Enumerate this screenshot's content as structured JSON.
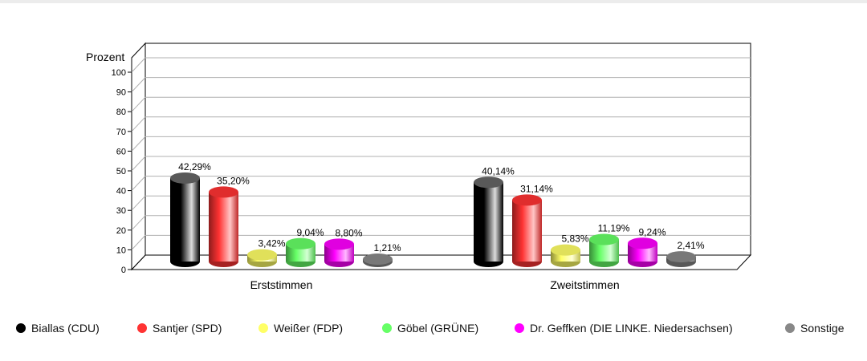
{
  "chart_data": {
    "type": "bar",
    "ylabel": "Prozent",
    "ylim": [
      0,
      100
    ],
    "yticks": [
      0,
      10,
      20,
      30,
      40,
      50,
      60,
      70,
      80,
      90,
      100
    ],
    "grid": true,
    "legend_position": "bottom",
    "categories": [
      "Erststimmen",
      "Zweitstimmen"
    ],
    "series": [
      {
        "name": "Biallas (CDU)",
        "color": "#000000",
        "values": [
          42.29,
          40.14
        ],
        "labels": [
          "42,29%",
          "40,14%"
        ]
      },
      {
        "name": "Santjer (SPD)",
        "color": "#ff3333",
        "values": [
          35.2,
          31.14
        ],
        "labels": [
          "35,20%",
          "31,14%"
        ]
      },
      {
        "name": "Weißer (FDP)",
        "color": "#ffff66",
        "values": [
          3.42,
          5.83
        ],
        "labels": [
          "3,42%",
          "5,83%"
        ]
      },
      {
        "name": "Göbel (GRÜNE)",
        "color": "#66ff66",
        "values": [
          9.04,
          11.19
        ],
        "labels": [
          "9,04%",
          "11,19%"
        ]
      },
      {
        "name": "Dr. Geffken (DIE LINKE. Niedersachsen)",
        "color": "#ff00ff",
        "values": [
          8.8,
          9.24
        ],
        "labels": [
          "8,80%",
          "9,24%"
        ]
      },
      {
        "name": "Sonstige",
        "color": "#888888",
        "values": [
          1.21,
          2.41
        ],
        "labels": [
          "1,21%",
          "2,41%"
        ]
      }
    ]
  }
}
